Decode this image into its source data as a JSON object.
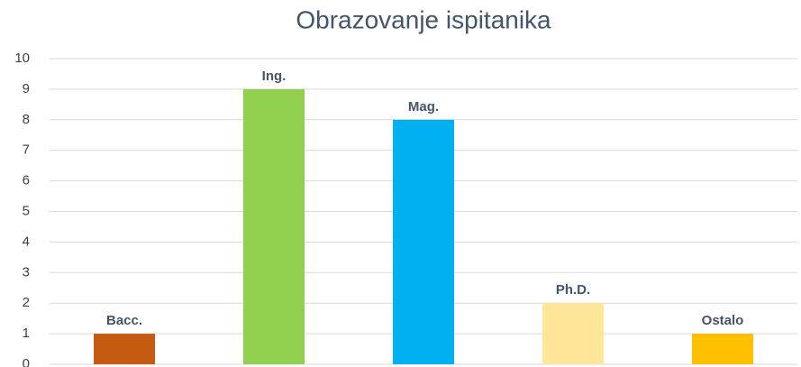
{
  "chart_data": {
    "type": "bar",
    "title": "Obrazovanje ispitanika",
    "categories": [
      "Bacc.",
      "Ing.",
      "Mag.",
      "Ph.D.",
      "Ostalo"
    ],
    "values": [
      1,
      9,
      8,
      2,
      1
    ],
    "colors": [
      "#c55a11",
      "#92d050",
      "#00b0f0",
      "#ffe699",
      "#ffc000"
    ],
    "ylim": [
      0,
      10
    ],
    "yticks": [
      0,
      1,
      2,
      3,
      4,
      5,
      6,
      7,
      8,
      9,
      10
    ],
    "grid": true
  }
}
